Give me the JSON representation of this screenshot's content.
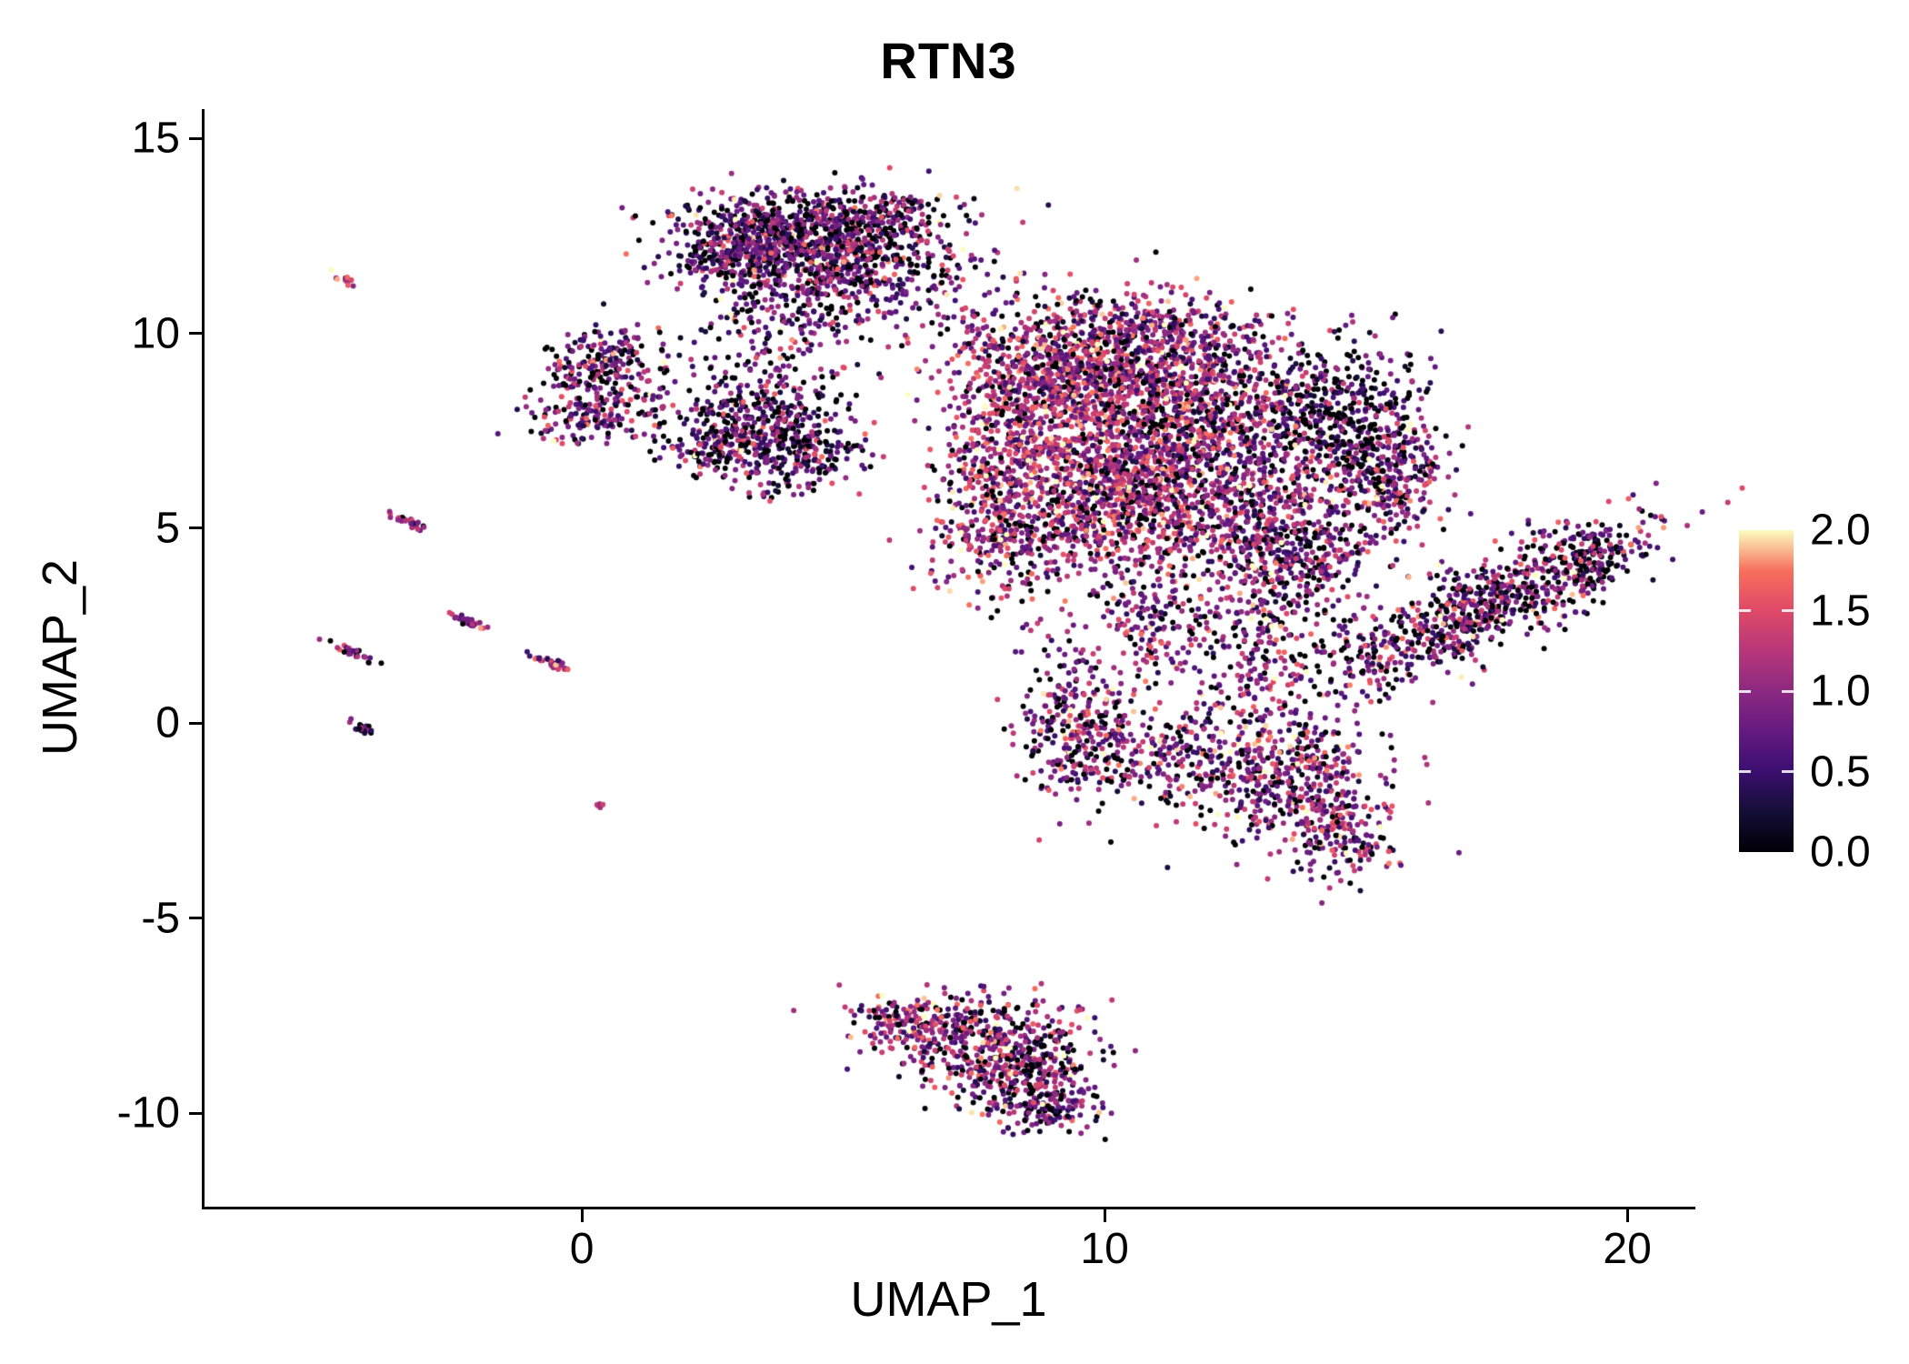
{
  "chart_data": {
    "type": "scatter",
    "title": "RTN3",
    "xlabel": "UMAP_1",
    "ylabel": "UMAP_2",
    "xlim": [
      -7.22,
      21.25
    ],
    "ylim": [
      -12.4,
      15.75
    ],
    "grid": false,
    "point_radius": 3,
    "seed": 7,
    "xticks": [
      {
        "v": 0,
        "label": "0"
      },
      {
        "v": 10,
        "label": "10"
      },
      {
        "v": 20,
        "label": "20"
      }
    ],
    "yticks": [
      {
        "v": 15,
        "label": "15"
      },
      {
        "v": 10,
        "label": "10"
      },
      {
        "v": 5,
        "label": "5"
      },
      {
        "v": 0,
        "label": "0"
      },
      {
        "v": -5,
        "label": "-5"
      },
      {
        "v": -10,
        "label": "-10"
      }
    ],
    "colorbar": {
      "title": "",
      "domain": [
        0,
        2
      ],
      "tick_labels": [
        "2.0",
        "1.5",
        "1.0",
        "0.5",
        "0.0"
      ],
      "tick_values": [
        2.0,
        1.5,
        1.0,
        0.5,
        0.0
      ],
      "inner_tick_values": [
        1.5,
        1.0,
        0.5
      ],
      "palette_name": "magma",
      "stops": [
        {
          "t": 0.0,
          "color": "#000004"
        },
        {
          "t": 0.125,
          "color": "#140E36"
        },
        {
          "t": 0.25,
          "color": "#3B0F70"
        },
        {
          "t": 0.375,
          "color": "#641A80"
        },
        {
          "t": 0.5,
          "color": "#8C2981"
        },
        {
          "t": 0.625,
          "color": "#B73779"
        },
        {
          "t": 0.75,
          "color": "#DE4968"
        },
        {
          "t": 0.875,
          "color": "#F7705C"
        },
        {
          "t": 1.0,
          "color": "#FCFDBF"
        }
      ]
    },
    "clusters": [
      {
        "name": "top-main-core",
        "cx": 4.2,
        "cy": 12.55,
        "sx": 1.1,
        "sy": 0.6,
        "n": 700,
        "mean": 0.8,
        "sd": 0.5,
        "zero": 0.18
      },
      {
        "name": "top-main-left",
        "cx": 3.0,
        "cy": 12.0,
        "sx": 0.7,
        "sy": 0.55,
        "n": 300,
        "mean": 0.75,
        "sd": 0.5,
        "zero": 0.18
      },
      {
        "name": "top-main-right",
        "cx": 5.3,
        "cy": 11.7,
        "sx": 0.8,
        "sy": 0.7,
        "n": 280,
        "mean": 0.8,
        "sd": 0.5,
        "zero": 0.18
      },
      {
        "name": "top-main-trail",
        "cx": 4.3,
        "cy": 10.6,
        "sx": 0.9,
        "sy": 0.5,
        "n": 130,
        "mean": 0.8,
        "sd": 0.5,
        "zero": 0.15
      },
      {
        "name": "top-bridge",
        "cx": 6.8,
        "cy": 11.6,
        "sx": 0.8,
        "sy": 0.8,
        "n": 90,
        "mean": 0.75,
        "sd": 0.5,
        "zero": 0.2
      },
      {
        "name": "top-right-knot",
        "cx": 6.2,
        "cy": 13.1,
        "sx": 0.4,
        "sy": 0.3,
        "n": 70,
        "mean": 0.8,
        "sd": 0.5,
        "zero": 0.18
      },
      {
        "name": "left-small-upper",
        "cx": 0.45,
        "cy": 9.35,
        "sx": 0.55,
        "sy": 0.4,
        "n": 170,
        "mean": 0.85,
        "sd": 0.5,
        "zero": 0.15
      },
      {
        "name": "left-small-lower",
        "cx": 0.15,
        "cy": 7.95,
        "sx": 0.55,
        "sy": 0.4,
        "n": 140,
        "mean": 0.8,
        "sd": 0.5,
        "zero": 0.18
      },
      {
        "name": "left-small-join",
        "cx": 0.9,
        "cy": 8.6,
        "sx": 0.6,
        "sy": 0.5,
        "n": 50,
        "mean": 0.8,
        "sd": 0.5,
        "zero": 0.18
      },
      {
        "name": "mid-cluster",
        "cx": 3.3,
        "cy": 7.4,
        "sx": 0.85,
        "sy": 0.62,
        "n": 500,
        "mean": 0.7,
        "sd": 0.5,
        "zero": 0.2
      },
      {
        "name": "mid-scatter-up",
        "cx": 3.6,
        "cy": 9.0,
        "sx": 0.8,
        "sy": 0.8,
        "n": 100,
        "mean": 0.75,
        "sd": 0.5,
        "zero": 0.18
      },
      {
        "name": "mid-east",
        "cx": 4.6,
        "cy": 6.9,
        "sx": 0.45,
        "sy": 0.4,
        "n": 80,
        "mean": 0.7,
        "sd": 0.5,
        "zero": 0.2
      },
      {
        "name": "main-nw",
        "cx": 9.2,
        "cy": 8.9,
        "sx": 1.1,
        "sy": 0.9,
        "n": 850,
        "mean": 1.15,
        "sd": 0.45,
        "zero": 0.12
      },
      {
        "name": "main-ne",
        "cx": 11.4,
        "cy": 8.6,
        "sx": 1.2,
        "sy": 1.0,
        "n": 850,
        "mean": 1.0,
        "sd": 0.5,
        "zero": 0.15
      },
      {
        "name": "main-sw",
        "cx": 9.8,
        "cy": 6.1,
        "sx": 1.1,
        "sy": 1.0,
        "n": 800,
        "mean": 1.15,
        "sd": 0.45,
        "zero": 0.12
      },
      {
        "name": "main-se",
        "cx": 12.2,
        "cy": 5.8,
        "sx": 1.3,
        "sy": 1.1,
        "n": 850,
        "mean": 1.05,
        "sd": 0.5,
        "zero": 0.15
      },
      {
        "name": "main-dark-east",
        "cx": 14.4,
        "cy": 7.9,
        "sx": 0.85,
        "sy": 0.95,
        "n": 450,
        "mean": 0.5,
        "sd": 0.45,
        "zero": 0.3
      },
      {
        "name": "main-far-east",
        "cx": 15.5,
        "cy": 6.3,
        "sx": 0.6,
        "sy": 0.8,
        "n": 280,
        "mean": 0.95,
        "sd": 0.5,
        "zero": 0.15
      },
      {
        "name": "main-west-lobe",
        "cx": 8.0,
        "cy": 4.8,
        "sx": 0.75,
        "sy": 0.9,
        "n": 280,
        "mean": 1.05,
        "sd": 0.5,
        "zero": 0.15
      },
      {
        "name": "main-top-edge",
        "cx": 10.4,
        "cy": 10.2,
        "sx": 1.3,
        "sy": 0.5,
        "n": 260,
        "mean": 0.95,
        "sd": 0.5,
        "zero": 0.15
      },
      {
        "name": "main-bright-west",
        "cx": 8.1,
        "cy": 6.9,
        "sx": 0.6,
        "sy": 0.8,
        "n": 250,
        "mean": 1.2,
        "sd": 0.45,
        "zero": 0.1
      },
      {
        "name": "main-south-shelf",
        "cx": 13.6,
        "cy": 4.2,
        "sx": 0.8,
        "sy": 0.7,
        "n": 300,
        "mean": 0.9,
        "sd": 0.5,
        "zero": 0.18
      },
      {
        "name": "lower-column",
        "cx": 9.5,
        "cy": -0.2,
        "sx": 0.55,
        "sy": 1.0,
        "n": 330,
        "mean": 0.95,
        "sd": 0.5,
        "zero": 0.15
      },
      {
        "name": "lower-mid",
        "cx": 11.4,
        "cy": -0.7,
        "sx": 0.8,
        "sy": 0.6,
        "n": 160,
        "mean": 0.9,
        "sd": 0.5,
        "zero": 0.18
      },
      {
        "name": "lower-east",
        "cx": 13.3,
        "cy": -1.3,
        "sx": 0.95,
        "sy": 0.85,
        "n": 430,
        "mean": 1.0,
        "sd": 0.5,
        "zero": 0.15
      },
      {
        "name": "lower-tail",
        "cx": 14.4,
        "cy": -2.8,
        "sx": 0.55,
        "sy": 0.65,
        "n": 190,
        "mean": 0.95,
        "sd": 0.5,
        "zero": 0.15
      },
      {
        "name": "lower-join",
        "cx": 12.9,
        "cy": 1.9,
        "sx": 1.0,
        "sy": 1.0,
        "n": 300,
        "mean": 0.95,
        "sd": 0.5,
        "zero": 0.17
      },
      {
        "name": "lower-join-west",
        "cx": 10.7,
        "cy": 2.9,
        "sx": 0.6,
        "sy": 0.9,
        "n": 150,
        "mean": 0.9,
        "sd": 0.5,
        "zero": 0.18
      },
      {
        "name": "right-arm",
        "cx": 17.3,
        "cy": 3.0,
        "sx": 1.9,
        "sy": 0.5,
        "rot": 0.56,
        "n": 780,
        "mean": 0.85,
        "sd": 0.5,
        "zero": 0.22
      },
      {
        "name": "right-arm-tip",
        "cx": 19.2,
        "cy": 4.2,
        "sx": 0.4,
        "sy": 0.35,
        "n": 80,
        "mean": 0.8,
        "sd": 0.5,
        "zero": 0.2
      },
      {
        "name": "bottom-upper",
        "cx": 7.5,
        "cy": -7.9,
        "sx": 1.0,
        "sy": 0.45,
        "n": 330,
        "mean": 0.95,
        "sd": 0.5,
        "zero": 0.15
      },
      {
        "name": "bottom-mid",
        "cx": 8.2,
        "cy": -8.9,
        "sx": 0.8,
        "sy": 0.5,
        "n": 300,
        "mean": 0.9,
        "sd": 0.5,
        "zero": 0.17
      },
      {
        "name": "bottom-tip",
        "cx": 8.8,
        "cy": -9.8,
        "sx": 0.5,
        "sy": 0.4,
        "n": 160,
        "mean": 0.85,
        "sd": 0.5,
        "zero": 0.17
      },
      {
        "name": "bottom-west-tip",
        "cx": 6.1,
        "cy": -7.6,
        "sx": 0.5,
        "sy": 0.3,
        "n": 80,
        "mean": 0.9,
        "sd": 0.5,
        "zero": 0.15
      },
      {
        "name": "streak-1",
        "cx": -4.55,
        "cy": 11.4,
        "sx": 0.12,
        "sy": 0.05,
        "rot": -0.5,
        "n": 14,
        "mean": 1.2,
        "sd": 0.35,
        "zero": 0.05
      },
      {
        "name": "streak-2",
        "cx": -3.3,
        "cy": 5.15,
        "sx": 0.22,
        "sy": 0.05,
        "rot": -0.5,
        "n": 28,
        "mean": 1.2,
        "sd": 0.4,
        "zero": 0.08
      },
      {
        "name": "streak-3",
        "cx": -2.15,
        "cy": 2.6,
        "sx": 0.22,
        "sy": 0.05,
        "rot": -0.5,
        "n": 30,
        "mean": 0.9,
        "sd": 0.4,
        "zero": 0.12
      },
      {
        "name": "streak-4",
        "cx": -4.35,
        "cy": 1.8,
        "sx": 0.2,
        "sy": 0.05,
        "rot": -0.5,
        "n": 26,
        "mean": 1.0,
        "sd": 0.45,
        "zero": 0.15
      },
      {
        "name": "streak-5",
        "cx": -0.6,
        "cy": 1.55,
        "sx": 0.24,
        "sy": 0.05,
        "rot": -0.5,
        "n": 34,
        "mean": 1.2,
        "sd": 0.4,
        "zero": 0.08
      },
      {
        "name": "streak-6",
        "cx": -4.25,
        "cy": -0.1,
        "sx": 0.16,
        "sy": 0.05,
        "rot": -0.5,
        "n": 22,
        "mean": 0.5,
        "sd": 0.4,
        "zero": 0.25
      },
      {
        "name": "streak-7",
        "cx": 0.35,
        "cy": -2.1,
        "sx": 0.07,
        "sy": 0.04,
        "rot": -0.5,
        "n": 7,
        "mean": 1.3,
        "sd": 0.3,
        "zero": 0.0
      }
    ]
  }
}
